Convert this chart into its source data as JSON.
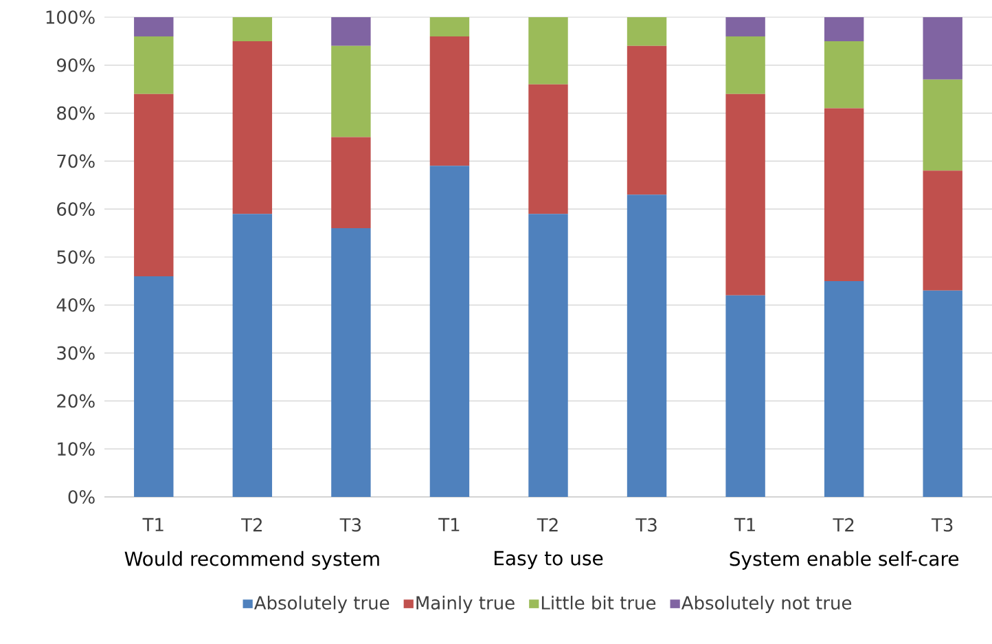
{
  "chart_data": {
    "type": "bar",
    "stacked": true,
    "categories": [
      "T1",
      "T2",
      "T3",
      "T1",
      "T2",
      "T3",
      "T1",
      "T2",
      "T3"
    ],
    "annotations": [
      "Would recommend system",
      "Easy to use",
      "System enable self-care"
    ],
    "series": [
      {
        "name": "Absolutely true",
        "color": "#4f81bd",
        "values": [
          46,
          59,
          56,
          69,
          59,
          63,
          42,
          45,
          43
        ]
      },
      {
        "name": "Mainly true",
        "color": "#c0504d",
        "values": [
          38,
          36,
          19,
          27,
          27,
          31,
          42,
          36,
          25
        ]
      },
      {
        "name": "Little bit true",
        "color": "#9bbb59",
        "values": [
          12,
          5,
          19,
          4,
          14,
          6,
          12,
          14,
          19
        ]
      },
      {
        "name": "Absolutely not true",
        "color": "#8064a2",
        "values": [
          4,
          0,
          6,
          0,
          0,
          0,
          4,
          5,
          13
        ]
      }
    ],
    "ylim": [
      0,
      100
    ],
    "yticks": [
      {
        "value": 0,
        "label": "0%"
      },
      {
        "value": 10,
        "label": "10%"
      },
      {
        "value": 20,
        "label": "20%"
      },
      {
        "value": 30,
        "label": "30%"
      },
      {
        "value": 40,
        "label": "40%"
      },
      {
        "value": 50,
        "label": "50%"
      },
      {
        "value": 60,
        "label": "60%"
      },
      {
        "value": 70,
        "label": "70%"
      },
      {
        "value": 80,
        "label": "80%"
      },
      {
        "value": 90,
        "label": "90%"
      },
      {
        "value": 100,
        "label": "100%"
      }
    ],
    "grid": "y",
    "legend": "bottom"
  }
}
